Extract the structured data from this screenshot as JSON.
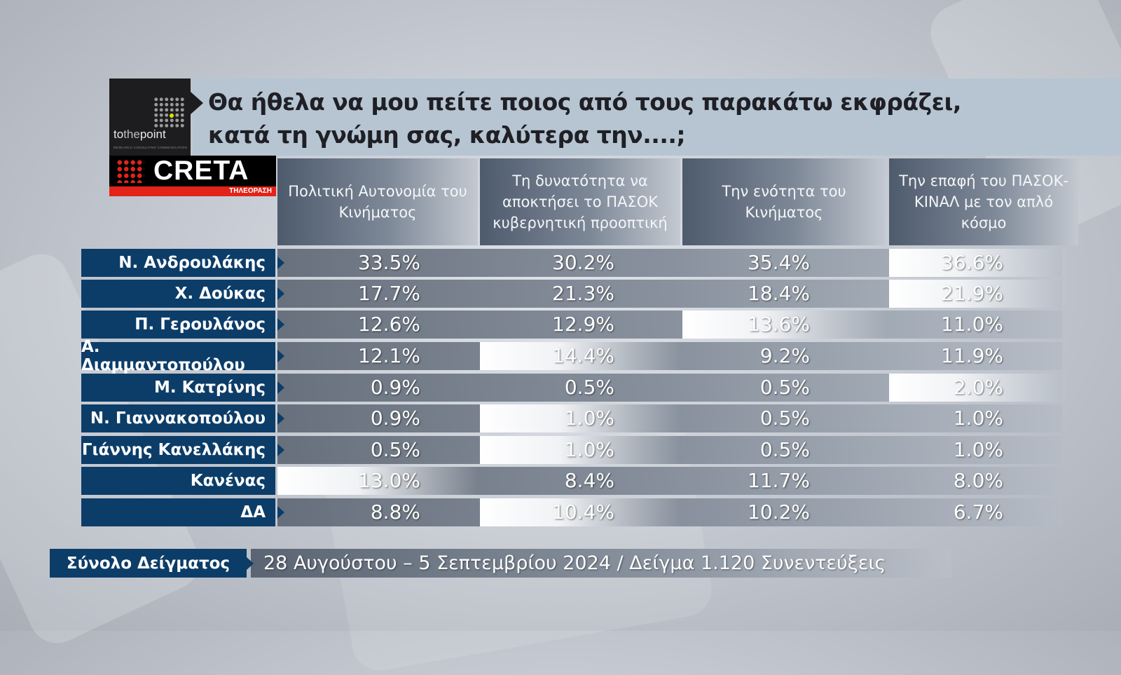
{
  "header": {
    "question_line1": "Θα ήθελα να μου πείτε ποιος από τους παρακάτω εκφράζει,",
    "question_line2": "κατά τη γνώμη σας, καλύτερα την....;"
  },
  "logos": {
    "tothepoint": {
      "to": "to",
      "the": "the",
      "point": "point",
      "tagline": "RESEARCH  CONSULTING  COMMUNICATION"
    },
    "creta": {
      "name": "CRETA",
      "subtitle": "ΤΗΛΕΟΡΑΣΗ"
    }
  },
  "colors": {
    "label_bg": "#0c3d68",
    "brand_red": "#e2231a",
    "title_bar": "#b7c5d2"
  },
  "chart_data": {
    "type": "table",
    "columns": [
      "Πολιτική Αυτονομία του Κινήματος",
      "Τη δυνατότητα να αποκτήσει το ΠΑΣΟΚ κυβερνητική προοπτική",
      "Την ενότητα του Κινήματος",
      "Την επαφή του ΠΑΣΟΚ-ΚΙΝΑΛ με τον απλό κόσμο"
    ],
    "rows": [
      {
        "name": "Ν. Ανδρουλάκης",
        "values": [
          "33.5%",
          "30.2%",
          "35.4%",
          "36.6%"
        ]
      },
      {
        "name": "Χ. Δούκας",
        "values": [
          "17.7%",
          "21.3%",
          "18.4%",
          "21.9%"
        ]
      },
      {
        "name": "Π. Γερουλάνος",
        "values": [
          "12.6%",
          "12.9%",
          "13.6%",
          "11.0%"
        ]
      },
      {
        "name": "Α. Διαμμαντοπούλου",
        "values": [
          "12.1%",
          "14.4%",
          "9.2%",
          "11.9%"
        ]
      },
      {
        "name": "Μ. Κατρίνης",
        "values": [
          "0.9%",
          "0.5%",
          "0.5%",
          "2.0%"
        ]
      },
      {
        "name": "Ν. Γιαννακοπούλου",
        "values": [
          "0.9%",
          "1.0%",
          "0.5%",
          "1.0%"
        ]
      },
      {
        "name": "Γιάννης Κανελλάκης",
        "values": [
          "0.5%",
          "1.0%",
          "0.5%",
          "1.0%"
        ]
      },
      {
        "name": "Κανένας",
        "values": [
          "13.0%",
          "8.4%",
          "11.7%",
          "8.0%"
        ]
      },
      {
        "name": "ΔΑ",
        "values": [
          "8.8%",
          "10.4%",
          "10.2%",
          "6.7%"
        ]
      }
    ],
    "highlighted_cells": [
      [
        0,
        3
      ],
      [
        1,
        3
      ],
      [
        2,
        2
      ],
      [
        3,
        1
      ],
      [
        4,
        3
      ],
      [
        5,
        1
      ],
      [
        6,
        1
      ],
      [
        7,
        0
      ],
      [
        8,
        1
      ]
    ]
  },
  "footer": {
    "label": "Σύνολο Δείγματος",
    "text": "28 Αυγούστου – 5 Σεπτεμβρίου 2024  / Δείγμα 1.120 Συνεντεύξεις"
  }
}
